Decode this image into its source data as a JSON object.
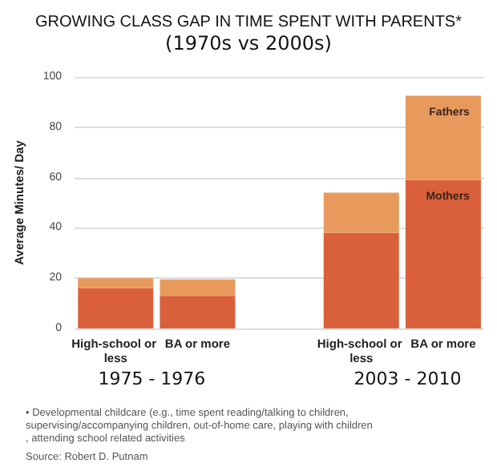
{
  "chart_data": {
    "type": "bar",
    "title": "GROWING CLASS GAP IN TIME SPENT WITH PARENTS*",
    "subtitle": "(1970s vs 2000s)",
    "ylabel": "Average Minutes/ Day",
    "categories": [
      "High-school or less",
      "BA or more",
      null,
      "High-school or less",
      "BA or more"
    ],
    "stacked": true,
    "series": [
      {
        "name": "Mothers",
        "color": "#d9603b",
        "values": [
          16,
          13,
          null,
          38,
          59
        ]
      },
      {
        "name": "Fathers",
        "color": "#e89a5d",
        "values": [
          4,
          6.5,
          null,
          16,
          33.5
        ]
      }
    ],
    "ylim": [
      0,
      100
    ],
    "yticks": [
      0,
      20,
      40,
      60,
      80,
      100
    ],
    "grid": "y",
    "legend": false,
    "annotations": [
      "1975 - 1976",
      "2003 - 2010",
      "• Developmental childcare (e.g., time spent reading/talking to children, supervising/accompanying children, out-of-home care, playing with children, attending school related activities",
      "Source: Robert D. Putnam"
    ]
  }
}
